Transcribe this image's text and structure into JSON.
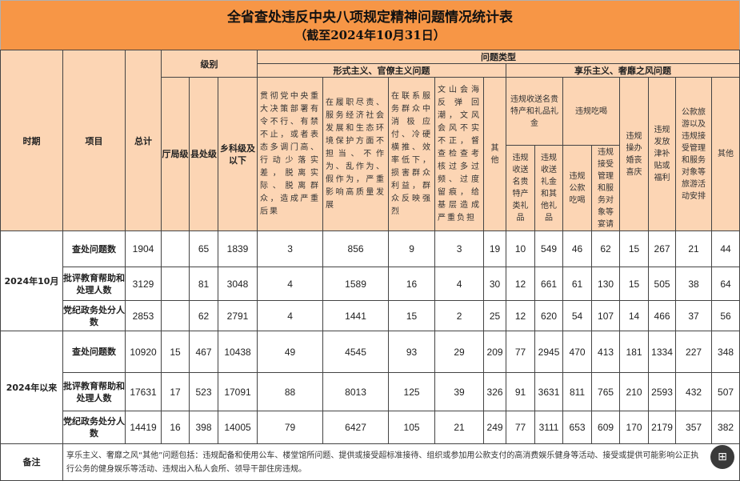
{
  "title": {
    "main": "全省查处违反中央八项规定精神问题情况统计表",
    "sub": "（截至2024年10月31日）"
  },
  "header": {
    "period": "时期",
    "item": "项目",
    "total": "总计",
    "level": "级别",
    "level_cols": [
      "厅局级",
      "县处级",
      "乡科级及以下"
    ],
    "problem_type": "问题类型",
    "formalism_group": "形式主义、官僚主义问题",
    "formalism_cols": [
      "贯彻党中央重大决策部署有令不行、有禁不止，或者表态多调门高、行动少落实差，脱离实际、脱离群众，造成严重后果",
      "在履职尽责、服务经济社会发展和生态环境保护方面不担当、不作为、乱作为、假作为，严重影响高质量发展",
      "在联系服务群众中消极应付、冷硬横推、效率低下，损害群众利益，群众反映强烈",
      "文山会海反弹回潮，文风会风不实不正，督查检查考核过多过频、过度留痕，给基层造成严重负担",
      "其他"
    ],
    "hedonism_group": "享乐主义、奢靡之风问题",
    "gifts_group": "违规收送名贵特产和礼品礼金",
    "gifts_cols": [
      "违规收送名贵特产类礼品",
      "违规收送礼金和其他礼品"
    ],
    "dining_group": "违规吃喝",
    "dining_cols": [
      "违规公款吃喝",
      "违规接受管理和服务对象等宴请"
    ],
    "hedonism_cols": [
      "违规操办婚丧喜庆",
      "违规发放津补贴或福利",
      "公款旅游以及违规接受管理和服务对象等旅游活动安排",
      "其他"
    ]
  },
  "groups": [
    {
      "period": "2024年10月",
      "rows": [
        {
          "item": "查处问题数",
          "values": [
            "1904",
            "",
            "65",
            "1839",
            "3",
            "856",
            "9",
            "3",
            "19",
            "10",
            "549",
            "46",
            "62",
            "15",
            "267",
            "21",
            "44"
          ]
        },
        {
          "item": "批评教育帮助和处理人数",
          "values": [
            "3129",
            "",
            "81",
            "3048",
            "4",
            "1589",
            "16",
            "4",
            "30",
            "12",
            "661",
            "61",
            "130",
            "15",
            "505",
            "38",
            "64"
          ]
        },
        {
          "item": "党纪政务处分人数",
          "values": [
            "2853",
            "",
            "62",
            "2791",
            "4",
            "1441",
            "15",
            "2",
            "25",
            "12",
            "620",
            "54",
            "107",
            "14",
            "466",
            "37",
            "56"
          ]
        }
      ]
    },
    {
      "period": "2024年以来",
      "rows": [
        {
          "item": "查处问题数",
          "values": [
            "10920",
            "15",
            "467",
            "10438",
            "49",
            "4545",
            "93",
            "29",
            "209",
            "77",
            "2945",
            "470",
            "413",
            "181",
            "1334",
            "227",
            "348"
          ]
        },
        {
          "item": "批评教育帮助和处理人数",
          "values": [
            "17631",
            "17",
            "523",
            "17091",
            "88",
            "8013",
            "125",
            "39",
            "326",
            "91",
            "3631",
            "811",
            "765",
            "210",
            "2593",
            "432",
            "507"
          ]
        },
        {
          "item": "党纪政务处分人数",
          "values": [
            "14419",
            "16",
            "398",
            "14005",
            "79",
            "6427",
            "105",
            "21",
            "249",
            "77",
            "3111",
            "653",
            "609",
            "170",
            "2179",
            "357",
            "382"
          ]
        }
      ]
    }
  ],
  "note": {
    "label": "备注",
    "text": "享乐主义、奢靡之风“其他”问题包括：违规配备和使用公车、楼堂馆所问题、提供或接受超标准接待、组织或参加用公款支付的高消费娱乐健身等活动、接受或提供可能影响公正执行公务的健身娱乐等活动、违规出入私人会所、领导干部住房违规。"
  },
  "floating_button": {
    "icon": "add-image-icon",
    "glyph": "⊞"
  },
  "colors": {
    "title_bg": "#f79646",
    "header_bg": "#fcd5b4"
  }
}
